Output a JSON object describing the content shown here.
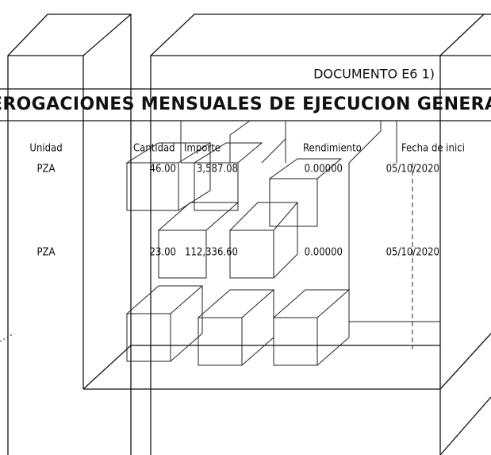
{
  "header": {
    "document": "DOCUMENTO E6 1)",
    "title": "EROGACIONES MENSUALES DE EJECUCION GENERA"
  },
  "table": {
    "columns": [
      "Unidad",
      "Cantidad",
      "Importe",
      "Rendimiento",
      "Fecha de inici"
    ],
    "rows": [
      [
        "PZA",
        "46.00",
        "3,587.08",
        "0.00000",
        "05/10/2020"
      ],
      [
        "PZA",
        "23.00",
        "112,336.60",
        "0.00000",
        "05/10/2020"
      ]
    ]
  }
}
